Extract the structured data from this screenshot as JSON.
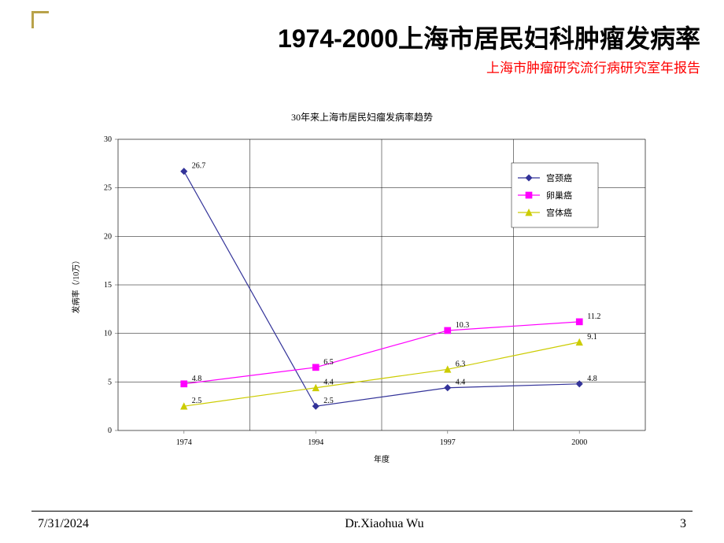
{
  "header": {
    "title_prefix": "1974-2000",
    "title_text": "上海市居民妇科肿瘤发病率",
    "subtitle": "上海市肿瘤研究流行病研究室年报告"
  },
  "footer": {
    "date": "7/31/2024",
    "author": "Dr.Xiaohua Wu",
    "page_number": "3"
  },
  "chart": {
    "type": "line",
    "title": "30年来上海市居民妇瘤发病率趋势",
    "x": {
      "label": "年度",
      "categories": [
        "1974",
        "1994",
        "1997",
        "2000"
      ],
      "label_fontsize": 10,
      "tick_fontsize": 10
    },
    "y": {
      "label": "发病率（/10万）",
      "min": 0,
      "max": 30,
      "step": 5,
      "label_fontsize": 10,
      "tick_fontsize": 10,
      "label_rotation": -90
    },
    "plot_bg": "#ffffff",
    "grid_color": "#000000",
    "grid_width": 0.5,
    "axis_color": "#808080",
    "border_color": "#808080",
    "border_width": 0.6,
    "legend": {
      "position": "right",
      "frame_color": "#000000",
      "frame_width": 0.5,
      "bg": "#ffffff",
      "fontsize": 11
    },
    "series": [
      {
        "name": "宫颈癌",
        "color": "#333399",
        "marker": "diamond",
        "marker_size": 5,
        "line_width": 1.2,
        "values": [
          26.7,
          2.5,
          4.4,
          4.8
        ],
        "value_labels": [
          "26.7",
          "2.5",
          "4.4",
          "4.8"
        ],
        "label_color": "#000000",
        "label_fontsize": 10
      },
      {
        "name": "卵巢癌",
        "color": "#ff00ff",
        "marker": "square",
        "marker_size": 5,
        "line_width": 1.2,
        "values": [
          4.8,
          6.5,
          10.3,
          11.2
        ],
        "value_labels": [
          "4.8",
          "6.5",
          "10.3",
          "11.2"
        ],
        "label_color": "#000000",
        "label_fontsize": 10
      },
      {
        "name": "宫体癌",
        "color": "#cccc00",
        "marker": "triangle",
        "marker_size": 5,
        "line_width": 1.2,
        "values": [
          2.5,
          4.4,
          6.3,
          9.1
        ],
        "value_labels": [
          "2.5",
          "4.4",
          "6.3",
          "9.1"
        ],
        "label_color": "#000000",
        "label_fontsize": 10
      }
    ]
  }
}
